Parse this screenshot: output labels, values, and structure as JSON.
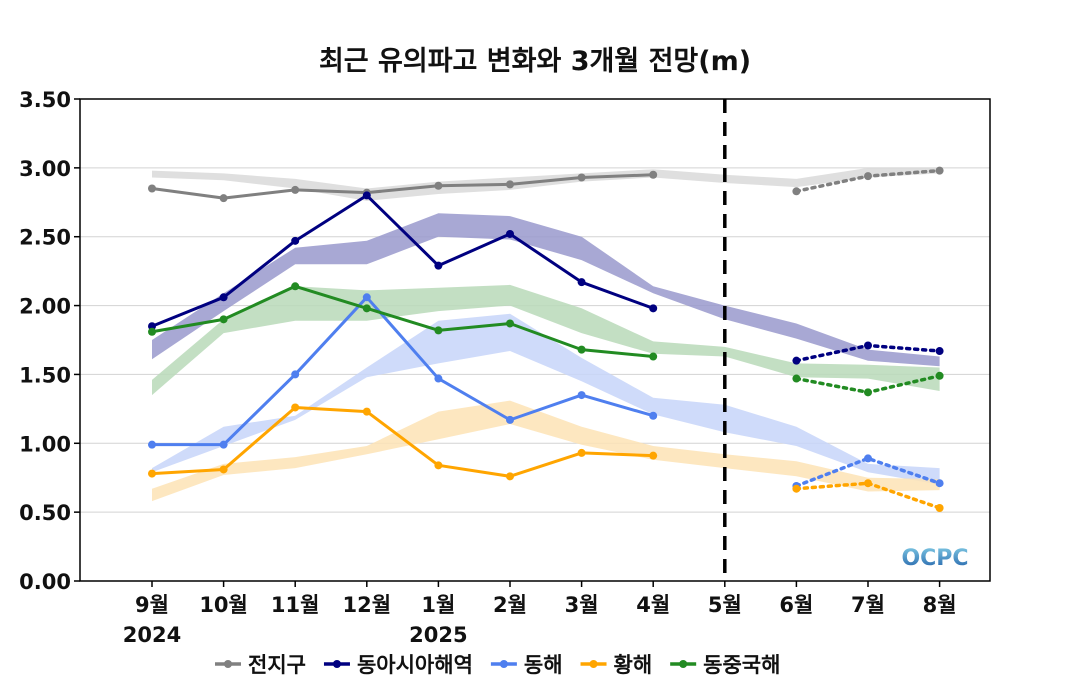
{
  "chart_data": {
    "type": "line",
    "title": "최근 유의파고 변화와 3개월 전망(m)",
    "xlabel": "",
    "ylabel": "",
    "categories": [
      "9월",
      "10월",
      "11월",
      "12월",
      "1월",
      "2월",
      "3월",
      "4월",
      "5월",
      "6월",
      "7월",
      "8월"
    ],
    "year_labels": [
      {
        "category": "9월",
        "text": "2024"
      },
      {
        "category": "1월",
        "text": "2025"
      }
    ],
    "ylim": [
      0,
      3.5
    ],
    "yticks": [
      "0.00",
      "0.50",
      "1.00",
      "1.50",
      "2.00",
      "2.50",
      "3.00",
      "3.50"
    ],
    "grid": true,
    "legend_position": "bottom",
    "forecast_divider_category": "5월",
    "series": [
      {
        "name": "전지구",
        "color": "#808080",
        "band_color": "#d9d9d9",
        "observed": [
          2.85,
          2.78,
          2.84,
          2.82,
          2.87,
          2.88,
          2.93,
          2.95,
          null,
          null,
          null,
          null
        ],
        "forecast": [
          null,
          null,
          null,
          null,
          null,
          null,
          null,
          null,
          null,
          2.83,
          2.94,
          2.98
        ],
        "band_upper": [
          2.98,
          2.96,
          2.92,
          2.85,
          2.9,
          2.93,
          2.96,
          2.99,
          2.95,
          2.92,
          3.0,
          3.0
        ],
        "band_lower": [
          2.93,
          2.91,
          2.85,
          2.76,
          2.81,
          2.84,
          2.9,
          2.93,
          2.89,
          2.86,
          2.93,
          2.96
        ]
      },
      {
        "name": "동아시아해역",
        "color": "#000080",
        "band_color": "#9999cc",
        "observed": [
          1.85,
          2.06,
          2.47,
          2.8,
          2.29,
          2.52,
          2.17,
          1.98,
          null,
          null,
          null,
          null
        ],
        "forecast": [
          null,
          null,
          null,
          null,
          null,
          null,
          null,
          null,
          null,
          1.6,
          1.71,
          1.67
        ],
        "band_upper": [
          1.75,
          2.09,
          2.42,
          2.47,
          2.67,
          2.65,
          2.5,
          2.14,
          2.0,
          1.87,
          1.68,
          1.63
        ],
        "band_lower": [
          1.61,
          1.96,
          2.3,
          2.3,
          2.5,
          2.48,
          2.33,
          2.09,
          1.9,
          1.76,
          1.6,
          1.56
        ]
      },
      {
        "name": "동해",
        "color": "#4f7fef",
        "band_color": "#c7d5f9",
        "observed": [
          0.99,
          0.99,
          1.5,
          2.06,
          1.47,
          1.17,
          1.35,
          1.2,
          null,
          null,
          null,
          null
        ],
        "forecast": [
          null,
          null,
          null,
          null,
          null,
          null,
          null,
          null,
          null,
          0.69,
          0.89,
          0.71
        ],
        "band_upper": [
          0.82,
          1.12,
          1.2,
          1.55,
          1.89,
          1.94,
          1.62,
          1.33,
          1.28,
          1.12,
          0.85,
          0.82
        ],
        "band_lower": [
          0.79,
          0.98,
          1.17,
          1.48,
          1.58,
          1.67,
          1.45,
          1.21,
          1.08,
          0.98,
          0.79,
          0.7
        ]
      },
      {
        "name": "황해",
        "color": "#ffa500",
        "band_color": "#fde3b5",
        "observed": [
          0.78,
          0.81,
          1.26,
          1.23,
          0.84,
          0.76,
          0.93,
          0.91,
          null,
          null,
          null,
          null
        ],
        "forecast": [
          null,
          null,
          null,
          null,
          null,
          null,
          null,
          null,
          null,
          0.67,
          0.71,
          0.53
        ],
        "band_upper": [
          0.67,
          0.85,
          0.9,
          0.98,
          1.23,
          1.31,
          1.12,
          0.98,
          0.92,
          0.87,
          0.75,
          0.74
        ],
        "band_lower": [
          0.58,
          0.77,
          0.82,
          0.92,
          1.03,
          1.14,
          0.99,
          0.88,
          0.82,
          0.76,
          0.65,
          0.66
        ]
      },
      {
        "name": "동중국해",
        "color": "#228b22",
        "band_color": "#b8d9b8",
        "observed": [
          1.81,
          1.9,
          2.14,
          1.98,
          1.82,
          1.87,
          1.68,
          1.63,
          null,
          null,
          null,
          null
        ],
        "forecast": [
          null,
          null,
          null,
          null,
          null,
          null,
          null,
          null,
          null,
          1.47,
          1.37,
          1.49
        ],
        "band_upper": [
          1.46,
          1.9,
          2.14,
          2.11,
          2.13,
          2.15,
          1.98,
          1.74,
          1.7,
          1.58,
          1.57,
          1.55
        ],
        "band_lower": [
          1.35,
          1.8,
          1.89,
          1.89,
          1.96,
          2.0,
          1.8,
          1.65,
          1.63,
          1.48,
          1.47,
          1.38
        ]
      }
    ]
  },
  "logo": {
    "text": "OCPC",
    "colors": [
      "#1f5fa8",
      "#7ec8e3"
    ]
  }
}
